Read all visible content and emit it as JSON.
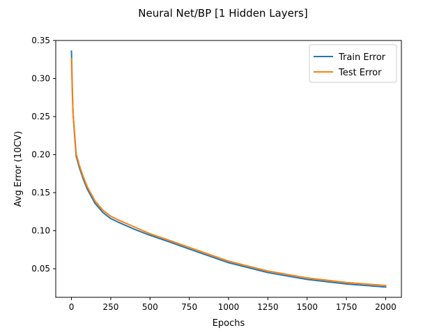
{
  "chart_data": {
    "type": "line",
    "title": "Neural Net/BP [1 Hidden Layers]",
    "xlabel": "Epochs",
    "ylabel": "Avg Error (10CV)",
    "xlim": [
      -100,
      2100
    ],
    "ylim": [
      0.0125,
      0.35
    ],
    "xticks": [
      0,
      250,
      500,
      750,
      1000,
      1250,
      1500,
      1750,
      2000
    ],
    "xtick_labels": [
      "0",
      "250",
      "500",
      "750",
      "1000",
      "1250",
      "1500",
      "1750",
      "2000"
    ],
    "yticks": [
      0.05,
      0.1,
      0.15,
      0.2,
      0.25,
      0.3,
      0.35
    ],
    "ytick_labels": [
      "0.05",
      "0.10",
      "0.15",
      "0.20",
      "0.25",
      "0.30",
      "0.35"
    ],
    "grid": false,
    "legend_position": "top-right",
    "series": [
      {
        "name": "Train Error",
        "color": "#1f77b4",
        "x": [
          0,
          5,
          10,
          20,
          30,
          50,
          75,
          100,
          150,
          200,
          250,
          300,
          400,
          500,
          600,
          750,
          1000,
          1250,
          1500,
          1750,
          2000
        ],
        "y": [
          0.336,
          0.29,
          0.255,
          0.225,
          0.198,
          0.183,
          0.168,
          0.155,
          0.136,
          0.124,
          0.116,
          0.111,
          0.102,
          0.094,
          0.087,
          0.076,
          0.058,
          0.045,
          0.036,
          0.03,
          0.026
        ]
      },
      {
        "name": "Test Error",
        "color": "#ff7f0e",
        "x": [
          0,
          5,
          10,
          20,
          30,
          50,
          75,
          100,
          150,
          200,
          250,
          300,
          400,
          500,
          600,
          750,
          1000,
          1250,
          1500,
          1750,
          2000
        ],
        "y": [
          0.326,
          0.285,
          0.255,
          0.228,
          0.201,
          0.186,
          0.171,
          0.158,
          0.139,
          0.127,
          0.119,
          0.114,
          0.105,
          0.096,
          0.089,
          0.078,
          0.06,
          0.047,
          0.038,
          0.032,
          0.028
        ]
      }
    ]
  }
}
